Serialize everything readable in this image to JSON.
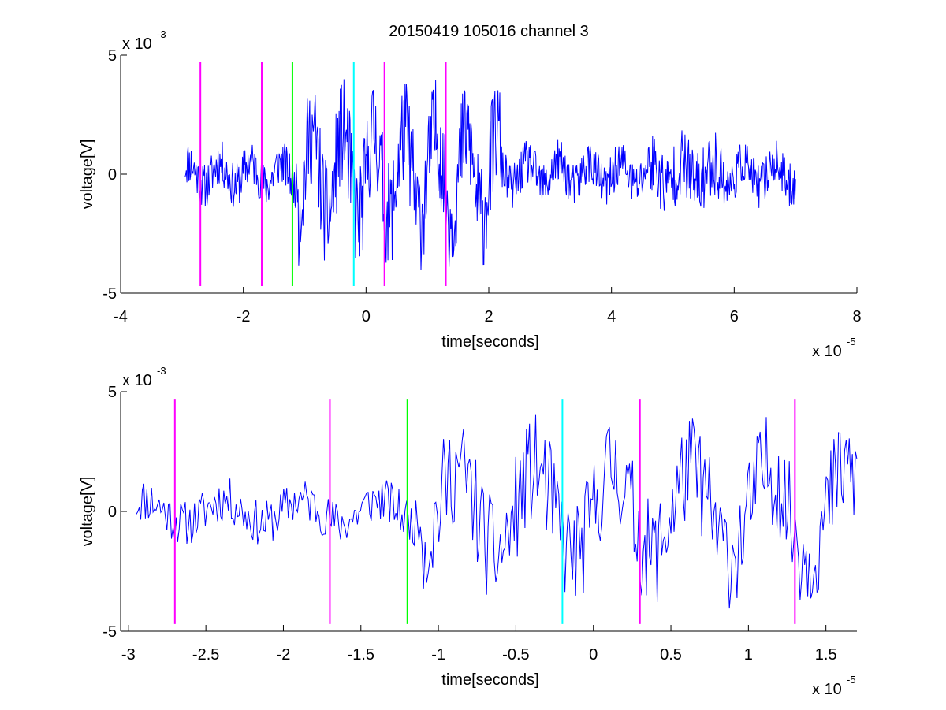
{
  "figure": {
    "title": "20150419 105016 channel 3"
  },
  "chart_data": [
    {
      "type": "line",
      "title": "20150419 105016 channel 3",
      "xlabel": "time[seconds]",
      "ylabel": "voltage[V]",
      "x_multiplier": "x 10",
      "x_exponent": "-5",
      "y_multiplier": "x 10",
      "y_exponent": "-3",
      "xlim": [
        -4,
        8
      ],
      "ylim": [
        -5,
        5
      ],
      "xticks": [
        "-4",
        "-2",
        "0",
        "2",
        "4",
        "6",
        "8"
      ],
      "yticks": [
        "-5",
        "0",
        "5"
      ],
      "grid": false,
      "signal": {
        "color": "#0000ff",
        "x_range": [
          -2.95,
          7.0
        ],
        "samples": 1000,
        "seed": 11
      },
      "markers": [
        {
          "x": -2.7,
          "color": "#ff00ff"
        },
        {
          "x": -1.7,
          "color": "#ff00ff"
        },
        {
          "x": -1.2,
          "color": "#00ff00"
        },
        {
          "x": -0.2,
          "color": "#00ffff"
        },
        {
          "x": 0.3,
          "color": "#ff00ff"
        },
        {
          "x": 1.3,
          "color": "#ff00ff"
        }
      ],
      "marker_y": [
        -4.7,
        4.7
      ]
    },
    {
      "type": "line",
      "xlabel": "time[seconds]",
      "ylabel": "voltage[V]",
      "x_multiplier": "x 10",
      "x_exponent": "-5",
      "y_multiplier": "x 10",
      "y_exponent": "-3",
      "xlim": [
        -3.05,
        1.7
      ],
      "ylim": [
        -5,
        5
      ],
      "xticks": [
        "-3",
        "-2.5",
        "-2",
        "-1.5",
        "-1",
        "-0.5",
        "0",
        "0.5",
        "1",
        "1.5"
      ],
      "xtick_values": [
        -3,
        -2.5,
        -2,
        -1.5,
        -1,
        -0.5,
        0,
        0.5,
        1,
        1.5
      ],
      "yticks": [
        "-5",
        "0",
        "5"
      ],
      "grid": false,
      "signal": {
        "color": "#0000ff",
        "x_range": [
          -2.95,
          1.7
        ],
        "samples": 470,
        "seed": 11
      },
      "markers": [
        {
          "x": -2.7,
          "color": "#ff00ff"
        },
        {
          "x": -1.7,
          "color": "#ff00ff"
        },
        {
          "x": -1.2,
          "color": "#00ff00"
        },
        {
          "x": -0.2,
          "color": "#00ffff"
        },
        {
          "x": 0.3,
          "color": "#ff00ff"
        },
        {
          "x": 1.3,
          "color": "#ff00ff"
        }
      ],
      "marker_y": [
        -4.7,
        4.7
      ]
    }
  ]
}
